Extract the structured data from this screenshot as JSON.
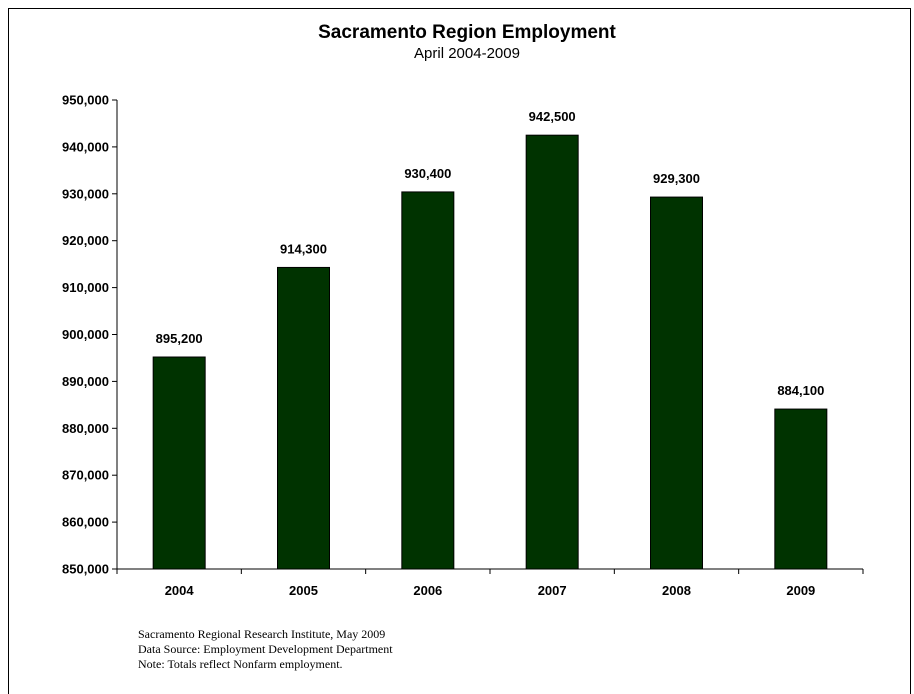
{
  "chart_data": {
    "type": "bar",
    "title": "Sacramento Region Employment",
    "subtitle": "April 2004-2009",
    "categories": [
      "2004",
      "2005",
      "2006",
      "2007",
      "2008",
      "2009"
    ],
    "values": [
      895200,
      914300,
      930400,
      942500,
      929300,
      884100
    ],
    "data_labels": [
      "895,200",
      "914,300",
      "930,400",
      "942,500",
      "929,300",
      "884,100"
    ],
    "ylim": [
      850000,
      950000
    ],
    "yticks": [
      850000,
      860000,
      870000,
      880000,
      890000,
      900000,
      910000,
      920000,
      930000,
      940000,
      950000
    ],
    "ytick_labels": [
      "850,000",
      "860,000",
      "870,000",
      "880,000",
      "890,000",
      "900,000",
      "910,000",
      "920,000",
      "930,000",
      "940,000",
      "950,000"
    ],
    "xlabel": "",
    "ylabel": "",
    "grid": false,
    "bar_color": "#003300"
  },
  "notes": {
    "line1": "Sacramento Regional Research Institute, May 2009",
    "line2": "Data Source:  Employment Development Department",
    "line3": "Note:  Totals reflect Nonfarm employment."
  }
}
